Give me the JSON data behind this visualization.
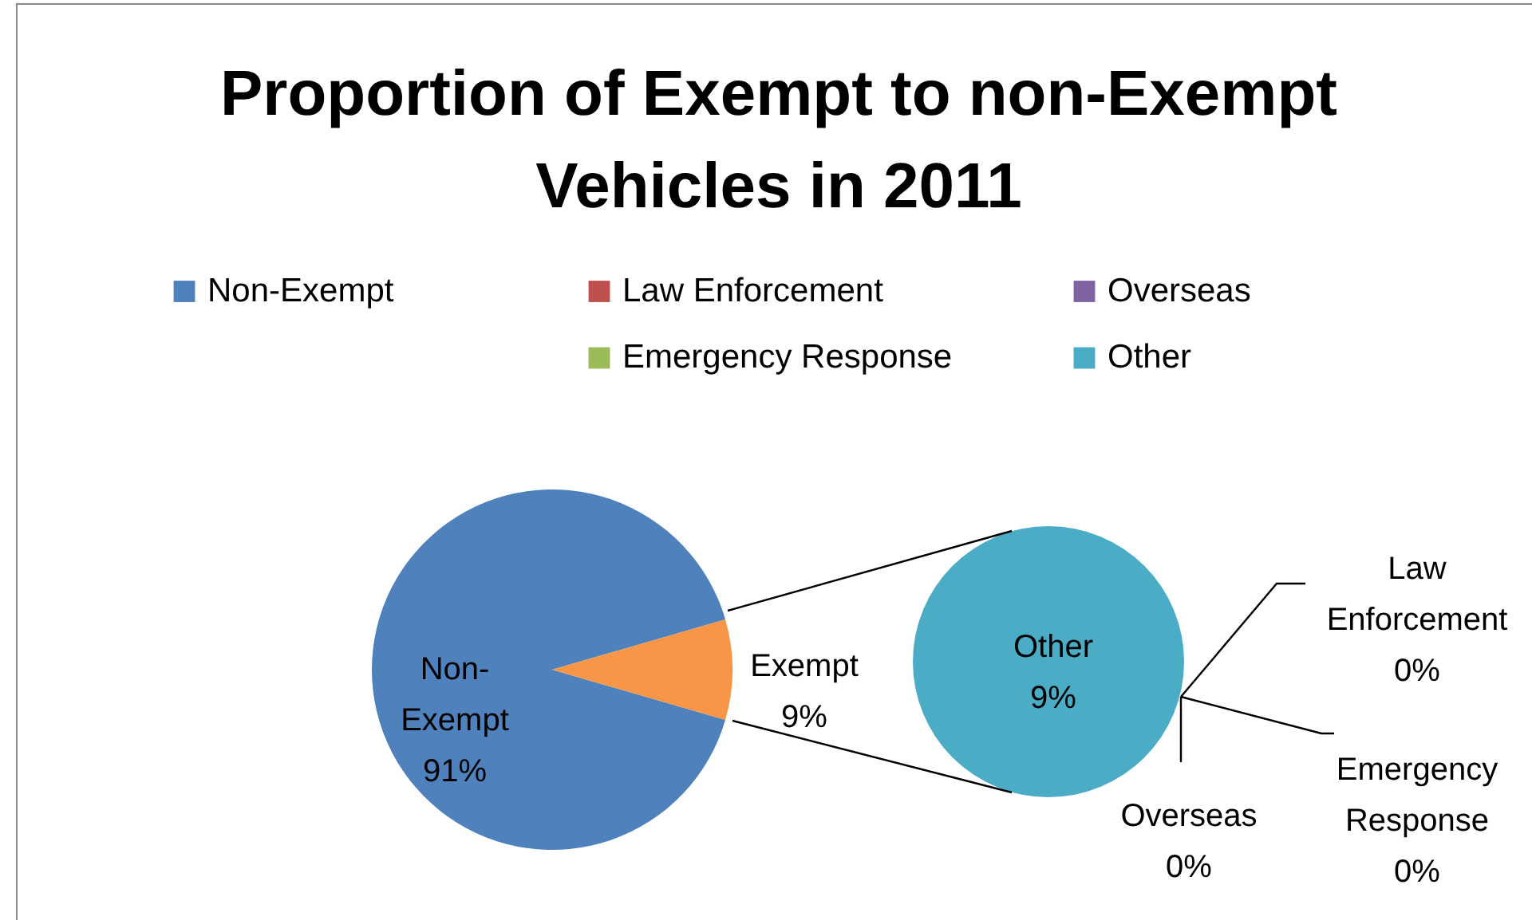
{
  "chart_data": [
    {
      "type": "pie",
      "title": "Proportion of Exempt to non-Exempt Vehicles in 2011",
      "categories": [
        "Non-Exempt",
        "Exempt"
      ],
      "values": [
        91,
        9
      ],
      "colors": [
        "#4f81bd",
        "#f79646"
      ],
      "value_labels": [
        "91%",
        "9%"
      ],
      "legend": "top"
    },
    {
      "type": "pie",
      "categories": [
        "Law Enforcement",
        "Emergency Response",
        "Overseas",
        "Other"
      ],
      "values": [
        0,
        0,
        0,
        9
      ],
      "colors": [
        "#c0504d",
        "#9bbb59",
        "#8064a2",
        "#4bacc6"
      ],
      "value_labels": [
        "0%",
        "0%",
        "0%",
        "9%"
      ],
      "legend": "top"
    }
  ]
}
